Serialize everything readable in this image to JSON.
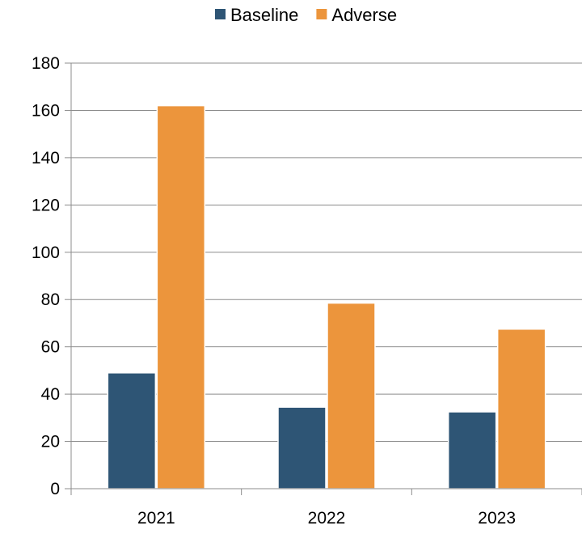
{
  "chart_data": {
    "type": "bar",
    "categories": [
      "2021",
      "2022",
      "2023"
    ],
    "series": [
      {
        "name": "Baseline",
        "color": "#2e5575",
        "values": [
          49,
          34.5,
          32.5
        ]
      },
      {
        "name": "Adverse",
        "color": "#ec953c",
        "values": [
          162,
          78.5,
          67.5
        ]
      }
    ],
    "ylim": [
      0,
      180
    ],
    "yticks": [
      0,
      20,
      40,
      60,
      80,
      100,
      120,
      140,
      160,
      180
    ],
    "grid": true,
    "legend_position": "top-center",
    "title": "",
    "xlabel": "",
    "ylabel": ""
  }
}
